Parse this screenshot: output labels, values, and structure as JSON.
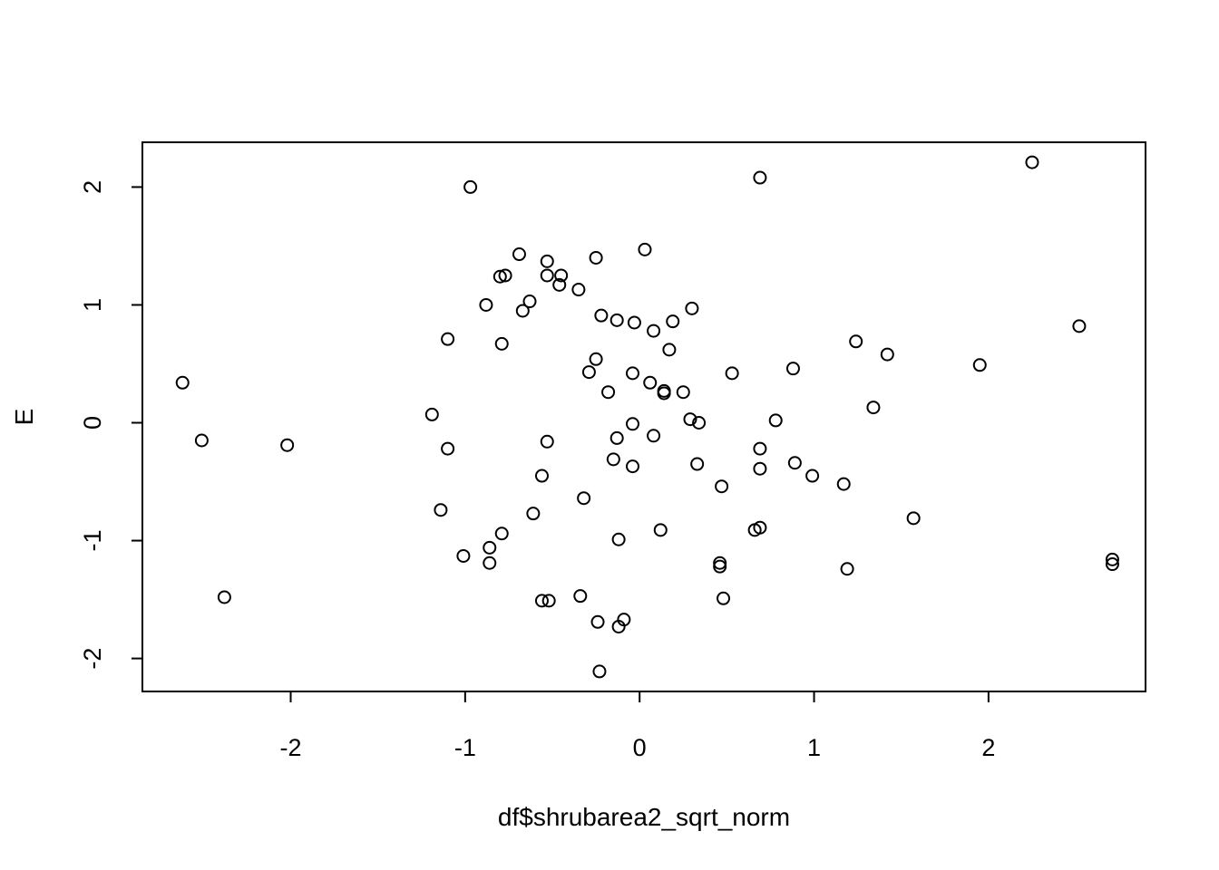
{
  "chart_data": {
    "type": "scatter",
    "title": "",
    "xlabel": "df$shrubarea2_sqrt_norm",
    "ylabel": "E",
    "xlim": [
      -2.85,
      2.9
    ],
    "ylim": [
      -2.28,
      2.38
    ],
    "xticks": [
      -2,
      -1,
      0,
      1,
      2
    ],
    "yticks": [
      -2,
      -1,
      0,
      1,
      2
    ],
    "xtick_labels": [
      "-2",
      "-1",
      "0",
      "1",
      "2"
    ],
    "ytick_labels": [
      "-2",
      "-1",
      "0",
      "1",
      "2"
    ],
    "grid": false,
    "legend": "none",
    "marker": "open-circle",
    "color": "#000000",
    "points": [
      [
        -2.62,
        0.34
      ],
      [
        -2.51,
        -0.15
      ],
      [
        -2.38,
        -1.48
      ],
      [
        -2.02,
        -0.19
      ],
      [
        -1.19,
        0.07
      ],
      [
        -1.14,
        -0.74
      ],
      [
        -1.1,
        0.71
      ],
      [
        -1.1,
        -0.22
      ],
      [
        -1.01,
        -1.13
      ],
      [
        -0.97,
        2.0
      ],
      [
        -0.88,
        1.0
      ],
      [
        -0.86,
        -1.06
      ],
      [
        -0.86,
        -1.19
      ],
      [
        -0.8,
        1.24
      ],
      [
        -0.79,
        0.67
      ],
      [
        -0.79,
        -0.94
      ],
      [
        -0.77,
        1.25
      ],
      [
        -0.69,
        1.43
      ],
      [
        -0.67,
        0.95
      ],
      [
        -0.63,
        1.03
      ],
      [
        -0.61,
        -0.77
      ],
      [
        -0.56,
        -1.51
      ],
      [
        -0.56,
        -0.45
      ],
      [
        -0.53,
        1.37
      ],
      [
        -0.53,
        1.25
      ],
      [
        -0.53,
        -0.16
      ],
      [
        -0.52,
        -1.51
      ],
      [
        -0.46,
        1.17
      ],
      [
        -0.45,
        1.25
      ],
      [
        -0.35,
        1.13
      ],
      [
        -0.34,
        -1.47
      ],
      [
        -0.32,
        -0.64
      ],
      [
        -0.29,
        0.43
      ],
      [
        -0.25,
        1.4
      ],
      [
        -0.25,
        0.54
      ],
      [
        -0.24,
        -1.69
      ],
      [
        -0.23,
        -2.11
      ],
      [
        -0.22,
        0.91
      ],
      [
        -0.18,
        0.26
      ],
      [
        -0.15,
        -0.31
      ],
      [
        -0.13,
        0.87
      ],
      [
        -0.13,
        -0.13
      ],
      [
        -0.12,
        -0.99
      ],
      [
        -0.12,
        -1.73
      ],
      [
        -0.09,
        -1.67
      ],
      [
        -0.04,
        0.42
      ],
      [
        -0.04,
        -0.01
      ],
      [
        -0.04,
        -0.37
      ],
      [
        -0.03,
        0.85
      ],
      [
        0.03,
        1.47
      ],
      [
        0.06,
        0.34
      ],
      [
        0.08,
        0.78
      ],
      [
        0.08,
        -0.11
      ],
      [
        0.12,
        -0.91
      ],
      [
        0.14,
        0.27
      ],
      [
        0.14,
        0.25
      ],
      [
        0.17,
        0.62
      ],
      [
        0.19,
        0.86
      ],
      [
        0.25,
        0.26
      ],
      [
        0.29,
        0.03
      ],
      [
        0.3,
        0.97
      ],
      [
        0.33,
        -0.35
      ],
      [
        0.34,
        0.0
      ],
      [
        0.46,
        -1.19
      ],
      [
        0.46,
        -1.22
      ],
      [
        0.47,
        -0.54
      ],
      [
        0.48,
        -1.49
      ],
      [
        0.53,
        0.42
      ],
      [
        0.66,
        -0.91
      ],
      [
        0.69,
        2.08
      ],
      [
        0.69,
        -0.89
      ],
      [
        0.69,
        -0.22
      ],
      [
        0.69,
        -0.39
      ],
      [
        0.78,
        0.02
      ],
      [
        0.88,
        0.46
      ],
      [
        0.89,
        -0.34
      ],
      [
        0.99,
        -0.45
      ],
      [
        1.17,
        -0.52
      ],
      [
        1.19,
        -1.24
      ],
      [
        1.24,
        0.69
      ],
      [
        1.34,
        0.13
      ],
      [
        1.42,
        0.58
      ],
      [
        1.57,
        -0.81
      ],
      [
        1.95,
        0.49
      ],
      [
        2.25,
        2.21
      ],
      [
        2.52,
        0.82
      ],
      [
        2.71,
        -1.16
      ],
      [
        2.71,
        -1.2
      ]
    ]
  }
}
